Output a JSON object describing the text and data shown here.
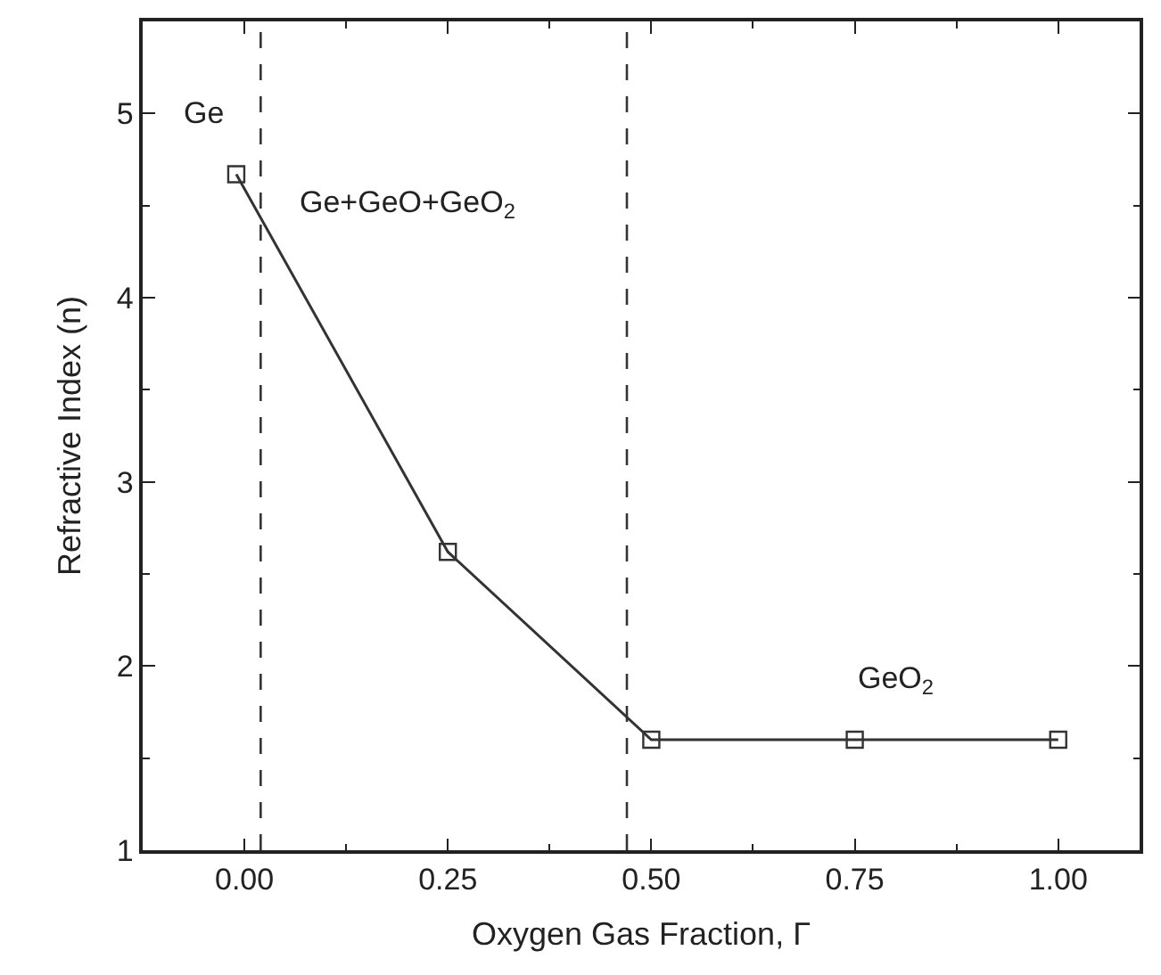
{
  "chart_data": {
    "type": "line",
    "xlabel": "Oxygen Gas Fraction, Γ",
    "ylabel": "Refractive Index (n)",
    "x": [
      -0.01,
      0.25,
      0.5,
      0.75,
      1.0
    ],
    "series": [
      {
        "color": "#333333",
        "values": [
          4.67,
          2.62,
          1.6,
          1.6,
          1.6
        ]
      }
    ],
    "marker": "square",
    "line_style": "solid",
    "xlim": [
      -0.125,
      1.1
    ],
    "xticks": [
      {
        "value": 0,
        "label": "0.00"
      },
      0.25,
      {
        "value": 0.5,
        "label": "0.50"
      },
      0.75,
      {
        "value": 1,
        "label": "1.00"
      }
    ],
    "ylim": [
      1,
      5.5
    ],
    "yticks": [
      1,
      2,
      3,
      4,
      5
    ],
    "ref_lines": [
      {
        "axis": "x",
        "value": 0.02,
        "line_style": "dashed",
        "color": "#333333"
      },
      {
        "axis": "x",
        "value": 0.47,
        "line_style": "dashed",
        "color": "#333333"
      }
    ],
    "annotations": [
      "Ge",
      "Ge+GeO+GeO$_{2}$",
      "GeO$_{2}$"
    ],
    "grid": false,
    "legend": false
  }
}
